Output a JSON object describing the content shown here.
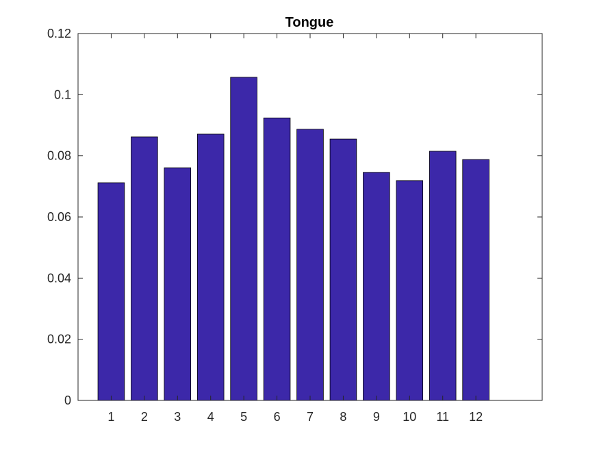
{
  "chart_data": {
    "type": "bar",
    "title": "Tongue",
    "xlabel": "",
    "ylabel": "",
    "categories": [
      "1",
      "2",
      "3",
      "4",
      "5",
      "6",
      "7",
      "8",
      "9",
      "10",
      "11",
      "12"
    ],
    "values": [
      0.0712,
      0.0862,
      0.0761,
      0.0871,
      0.1057,
      0.0924,
      0.0887,
      0.0855,
      0.0746,
      0.0719,
      0.0815,
      0.0788
    ],
    "xlim": [
      0,
      14
    ],
    "ylim": [
      0,
      0.12
    ],
    "yticks": [
      0,
      0.02,
      0.04,
      0.06,
      0.08,
      0.1,
      0.12
    ],
    "ytick_labels": [
      "0",
      "0.02",
      "0.04",
      "0.06",
      "0.08",
      "0.1",
      "0.12"
    ],
    "grid": false,
    "legend": "none",
    "colors": {
      "bar_fill": "#3c28a9",
      "bar_edge": "#000000",
      "axes": "#262626",
      "background": "#ffffff"
    }
  }
}
